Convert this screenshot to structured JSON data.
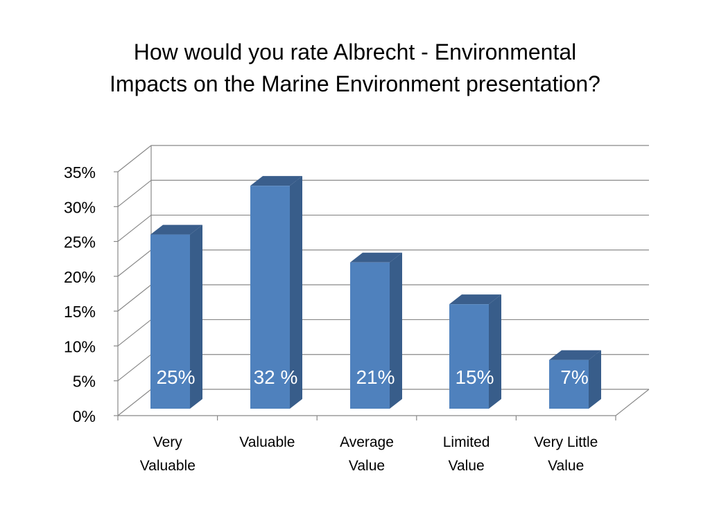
{
  "title_lines": [
    "How would you rate  Albrecht - Environmental",
    "Impacts on the Marine Environment presentation?"
  ],
  "chart_data": {
    "type": "bar",
    "title": "How would you rate  Albrecht - Environmental Impacts on the Marine Environment presentation?",
    "categories": [
      [
        "Very",
        "Valuable"
      ],
      [
        "Valuable"
      ],
      [
        "Average",
        "Value"
      ],
      [
        "Limited",
        "Value"
      ],
      [
        "Very Little",
        "Value"
      ]
    ],
    "values": [
      25,
      32,
      21,
      15,
      7
    ],
    "data_labels": [
      "25%",
      "32 %",
      "21%",
      "15%",
      "7%"
    ],
    "yticks": [
      "0%",
      "5%",
      "10%",
      "15%",
      "20%",
      "25%",
      "30%",
      "35%"
    ],
    "ylim": [
      0,
      35
    ],
    "ystep": 5,
    "grid": true,
    "legend": "none",
    "style": "3d-column",
    "colors": {
      "bar_front": "#4F81BD",
      "bar_side": "#385D8A",
      "bar_top": "#3A5E8C",
      "grid": "#888888",
      "axis": "#888888"
    }
  }
}
